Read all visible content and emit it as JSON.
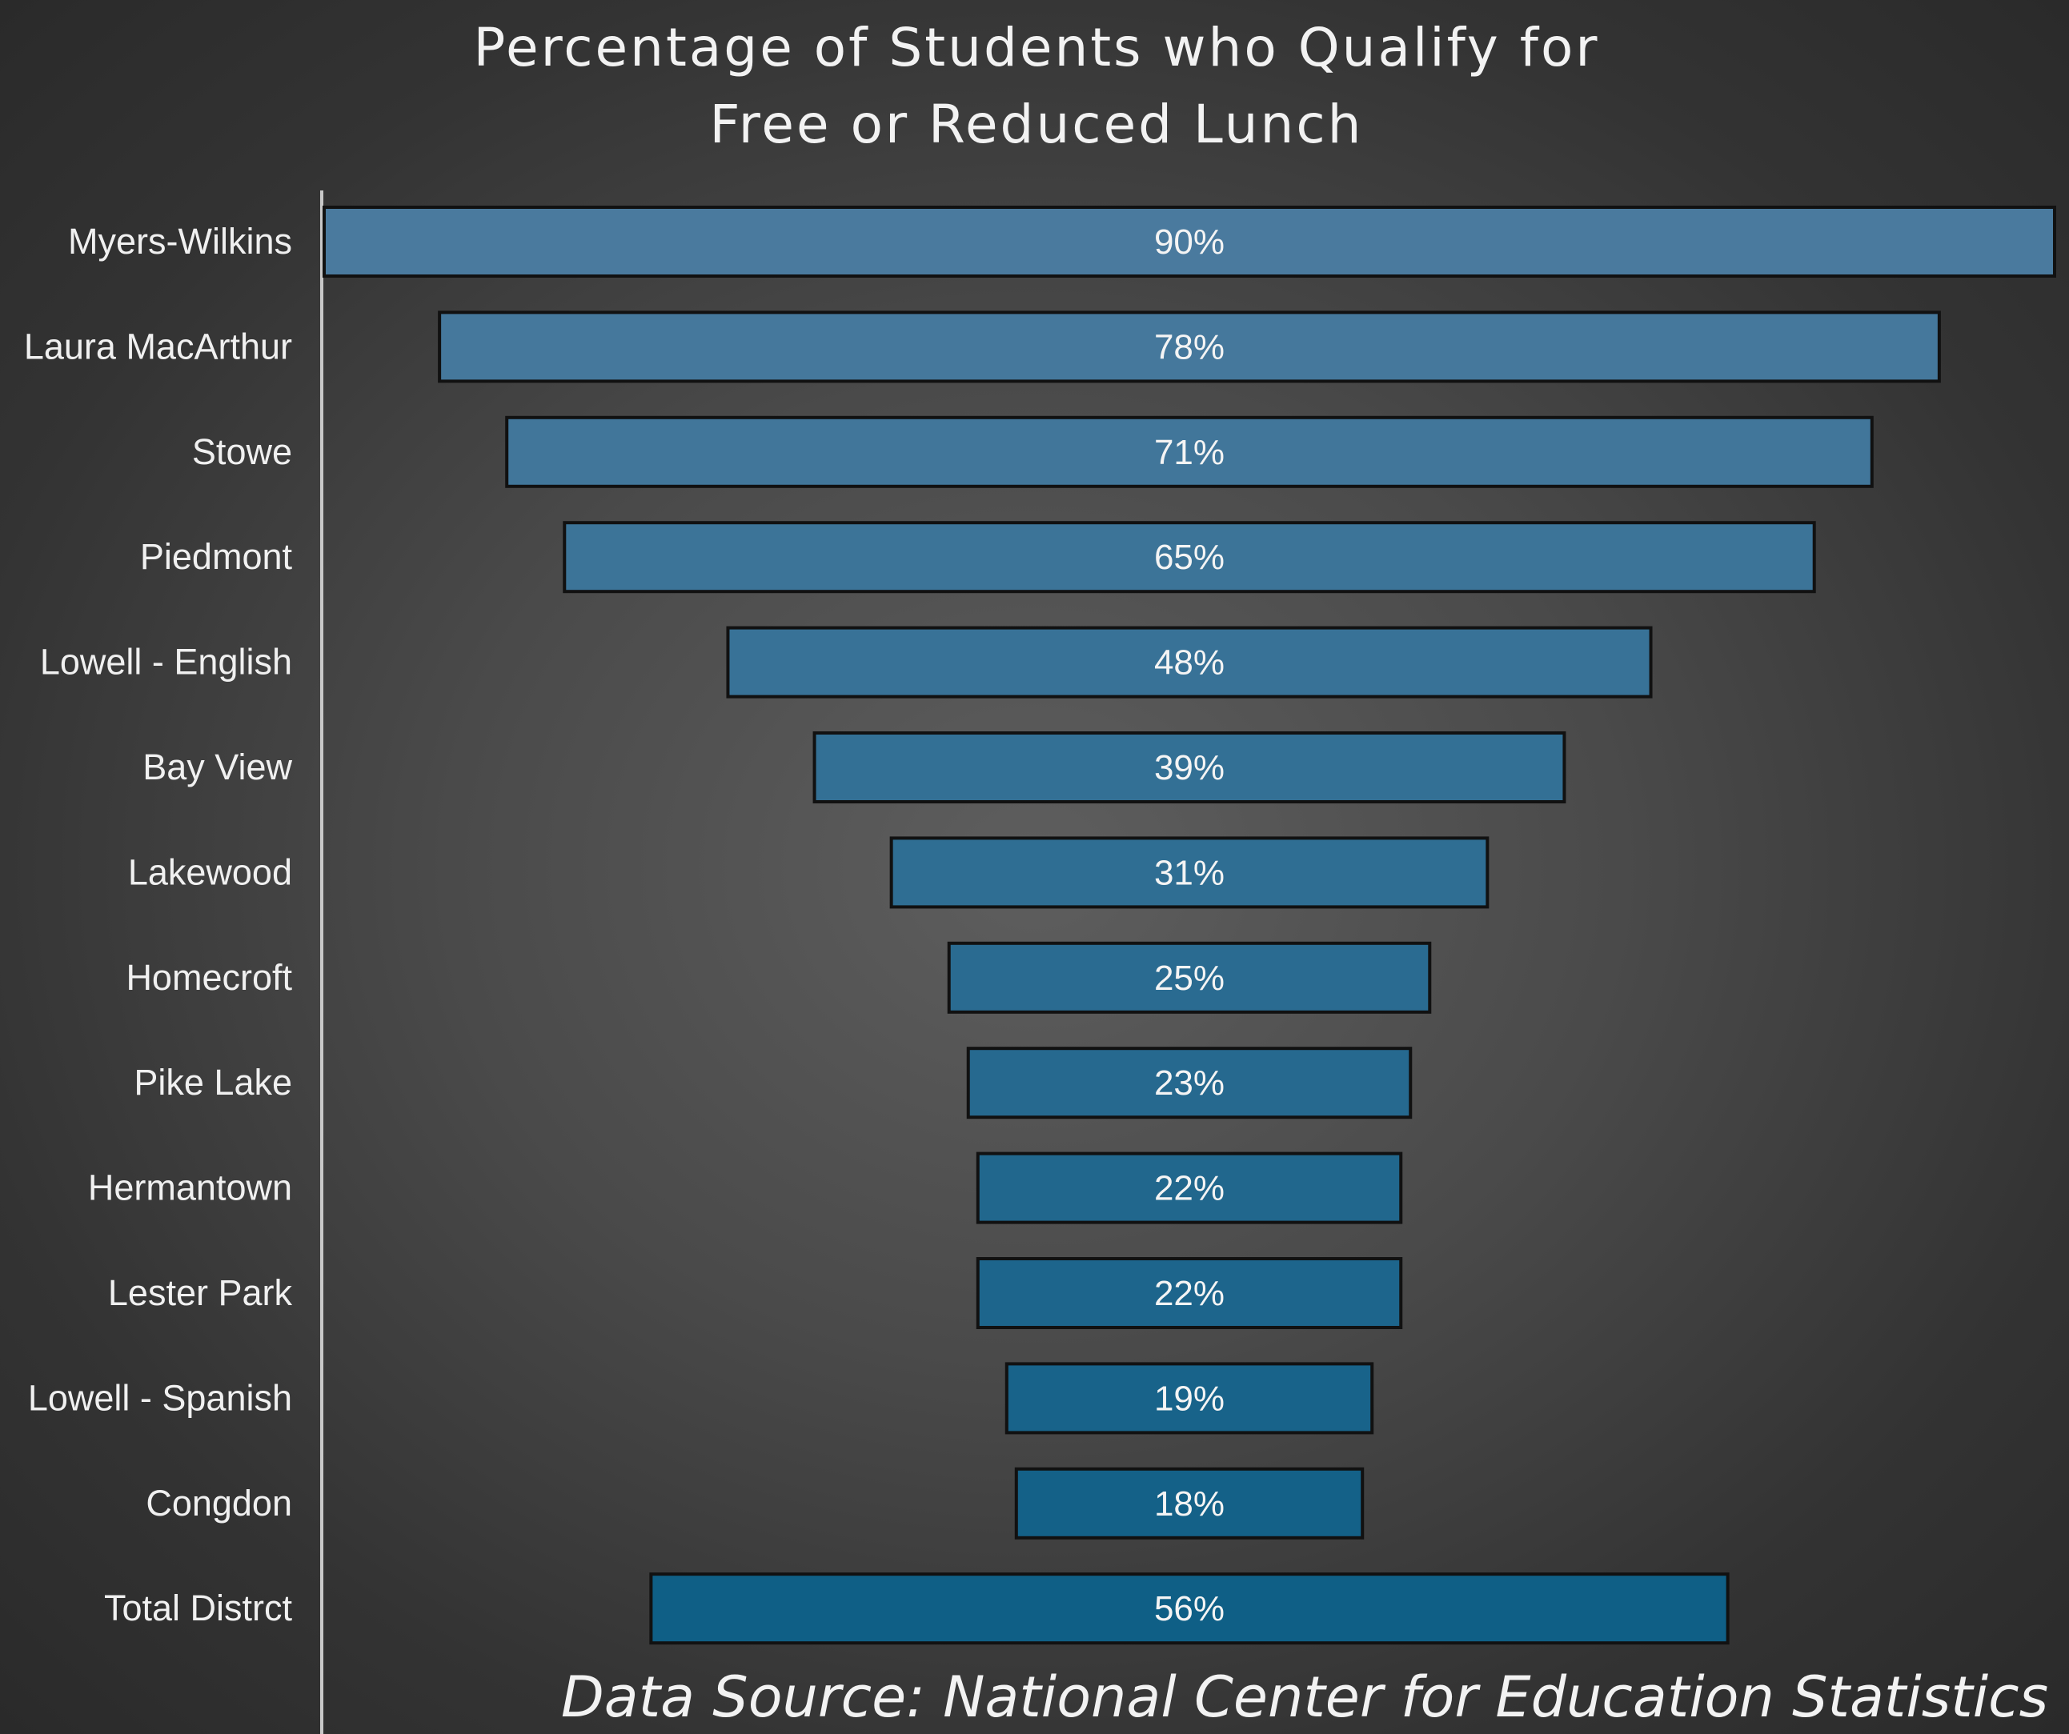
{
  "chart_data": {
    "type": "bar",
    "orientation": "horizontal",
    "layout": "funnel-centered",
    "title_lines": [
      "Percentage of Students who Qualify for",
      "Free or Reduced Lunch"
    ],
    "categories": [
      "Myers-Wilkins",
      "Laura MacArthur",
      "Stowe",
      "Piedmont",
      "Lowell - English",
      "Bay View",
      "Lakewood",
      "Homecroft",
      "Pike Lake",
      "Hermantown",
      "Lester Park",
      "Lowell - Spanish",
      "Congdon",
      "Total Distrct"
    ],
    "values": [
      90,
      78,
      71,
      65,
      48,
      39,
      31,
      25,
      23,
      22,
      22,
      19,
      18,
      56
    ],
    "value_labels": [
      "90%",
      "78%",
      "71%",
      "65%",
      "48%",
      "39%",
      "31%",
      "25%",
      "23%",
      "22%",
      "22%",
      "19%",
      "18%",
      "56%"
    ],
    "unit": "%",
    "xlim": [
      0,
      90
    ],
    "grid": false,
    "legend": "none",
    "colors": {
      "bar_top": "#4a7a9e",
      "bar_bottom": "#0f5f86",
      "bar_border": "#111111",
      "axis_line": "#c8c8c8",
      "text": "#f2f2f2"
    },
    "source_note": "Data Source: National Center for Education Statistics"
  }
}
